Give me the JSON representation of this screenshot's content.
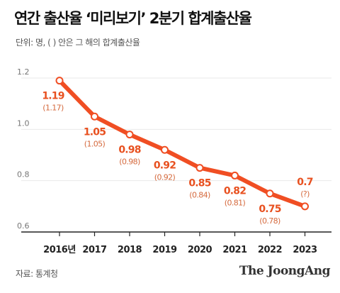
{
  "title": "연간 출산율 ‘미리보기’ 2분기 합계출산율",
  "subtitle": "단위: 명, ( ) 안은 그 해의 합계출산율",
  "source": "자료: 통계청",
  "brand": "The JoongAng",
  "colors": {
    "line": "#f04e23",
    "label": "#e8501f",
    "paren": "#d56a3e",
    "axis": "#222222",
    "grid": "#e9e9e9"
  },
  "chart_data": {
    "type": "line",
    "categories": [
      "2016년",
      "2017",
      "2018",
      "2019",
      "2020",
      "2021",
      "2022",
      "2023"
    ],
    "series": [
      {
        "values": [
          1.19,
          1.05,
          0.98,
          0.92,
          0.85,
          0.82,
          0.75,
          0.7
        ]
      }
    ],
    "annual_rate_labels": [
      "(1.17)",
      "(1.05)",
      "(0.98)",
      "(0.92)",
      "(0.84)",
      "(0.81)",
      "(0.78)",
      "(?)"
    ],
    "value_labels": [
      "1.19",
      "1.05",
      "0.98",
      "0.92",
      "0.85",
      "0.82",
      "0.75",
      "0.7"
    ],
    "y_ticks": [
      "1.2",
      "1.0",
      "0.8",
      "0.6"
    ],
    "ylim": [
      0.6,
      1.2
    ],
    "grid": true,
    "legend": "none"
  }
}
